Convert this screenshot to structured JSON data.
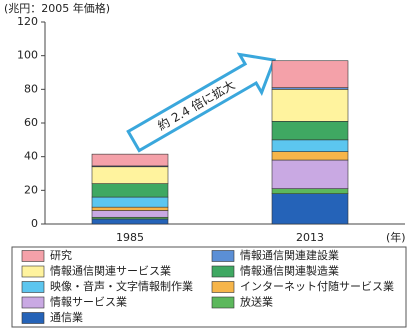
{
  "chart_data": {
    "type": "stacked-bar",
    "y_axis_label": "(兆円：2005 年価格)",
    "x_axis_label": "(年)",
    "annotation": "約 2.4 倍に拡大",
    "categories": [
      "1985",
      "2013"
    ],
    "ylim": [
      0,
      120
    ],
    "yticks": [
      0,
      20,
      40,
      60,
      80,
      100,
      120
    ],
    "grid": false,
    "series": [
      {
        "name": "通信業",
        "color": "#2563b8",
        "values": [
          3,
          18
        ]
      },
      {
        "name": "放送業",
        "color": "#5cb85c",
        "values": [
          1,
          3
        ]
      },
      {
        "name": "情報サービス業",
        "color": "#c9a9e3",
        "values": [
          4,
          17
        ]
      },
      {
        "name": "インターネット付随サービス業",
        "color": "#f6b54a",
        "values": [
          2,
          5
        ]
      },
      {
        "name": "映像・音声・文字情報制作業",
        "color": "#5cc6ef",
        "values": [
          6,
          7
        ]
      },
      {
        "name": "情報通信関連製造業",
        "color": "#3fa862",
        "values": [
          8,
          11
        ]
      },
      {
        "name": "情報通信関連サービス業",
        "color": "#fff39e",
        "values": [
          10,
          19
        ]
      },
      {
        "name": "情報通信関連建設業",
        "color": "#5b8fd6",
        "values": [
          0.5,
          1
        ]
      },
      {
        "name": "研究",
        "color": "#f4a1a9",
        "values": [
          7,
          16
        ]
      }
    ]
  }
}
